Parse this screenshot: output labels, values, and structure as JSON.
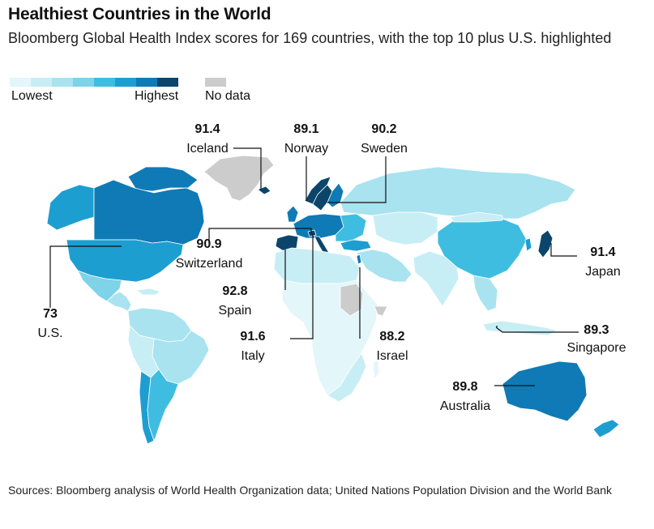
{
  "title": "Healthiest Countries in the World",
  "subtitle": "Bloomberg Global Health Index scores for 169 countries, with the top 10 plus U.S. highlighted",
  "legend": {
    "scale_colors": [
      "#e3f6fa",
      "#c8eef5",
      "#a8e3ef",
      "#7fd3e8",
      "#3fbde0",
      "#1d9ed1",
      "#0f7ab5",
      "#0b456b"
    ],
    "no_data_color": "#cccccc",
    "low_label": "Lowest",
    "high_label": "Highest",
    "no_data_label": "No data"
  },
  "callouts": {
    "iceland": {
      "value": "91.4",
      "name": "Iceland"
    },
    "norway": {
      "value": "89.1",
      "name": "Norway"
    },
    "sweden": {
      "value": "90.2",
      "name": "Sweden"
    },
    "switzerland": {
      "value": "90.9",
      "name": "Switzerland"
    },
    "japan": {
      "value": "91.4",
      "name": "Japan"
    },
    "spain": {
      "value": "92.8",
      "name": "Spain"
    },
    "us": {
      "value": "73",
      "name": "U.S."
    },
    "italy": {
      "value": "91.6",
      "name": "Italy"
    },
    "israel": {
      "value": "88.2",
      "name": "Israel"
    },
    "singapore": {
      "value": "89.3",
      "name": "Singapore"
    },
    "australia": {
      "value": "89.8",
      "name": "Australia"
    }
  },
  "colors": {
    "leader_line": "#111111",
    "map_light": "#e3f6fa",
    "map_pale": "#c8eef5",
    "map_mid": "#a8e3ef",
    "map_sky": "#7fd3e8",
    "map_bright": "#3fbde0",
    "map_blue": "#1d9ed1",
    "map_deep": "#0f7ab5",
    "map_navy": "#0b456b",
    "no_data": "#cccccc"
  },
  "source": "Sources: Bloomberg analysis of World Health Organization data; United Nations Population Division and the World Bank"
}
